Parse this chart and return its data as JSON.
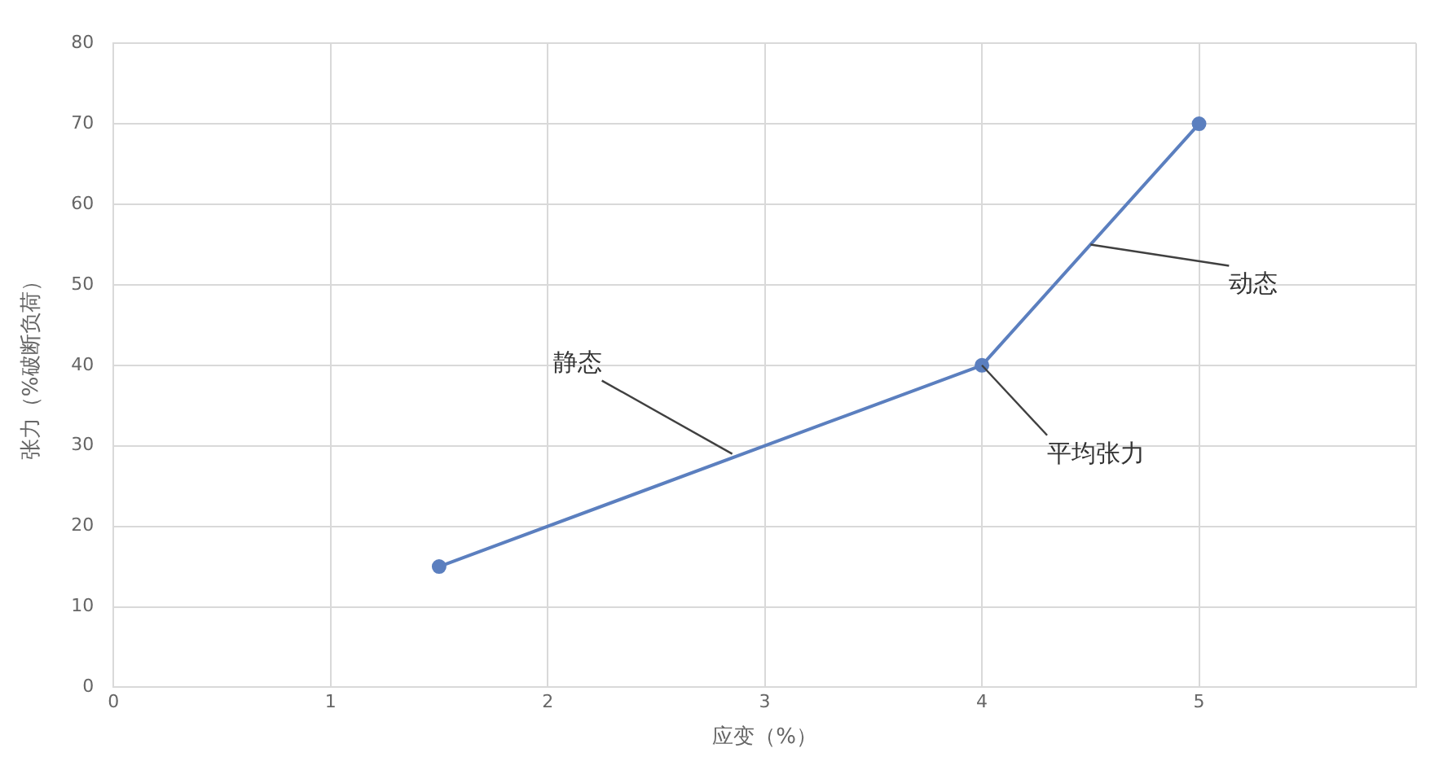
{
  "chart_data": {
    "type": "line",
    "xlabel": "应变（%）",
    "ylabel": "张力（%破断负荷）",
    "x": [
      1.5,
      4,
      5
    ],
    "series": [
      {
        "color": "#5b7fbf",
        "values": [
          15,
          40,
          70
        ]
      }
    ],
    "xlim": [
      0,
      6
    ],
    "xticks": [
      0,
      1,
      2,
      3,
      4,
      5,
      {
        "value": 6,
        "label": null
      }
    ],
    "ylim": [
      0,
      80
    ],
    "yticks": [
      0,
      10,
      20,
      30,
      40,
      50,
      60,
      70,
      80
    ],
    "grid": true,
    "marker": "circle",
    "legend": false,
    "annotations": [
      {
        "text": "静态",
        "x": 2.85,
        "y": 29
      },
      {
        "text": "平均张力",
        "x": 4,
        "y": 40
      },
      {
        "text": "动态",
        "x": 4.5,
        "y": 55
      }
    ]
  }
}
